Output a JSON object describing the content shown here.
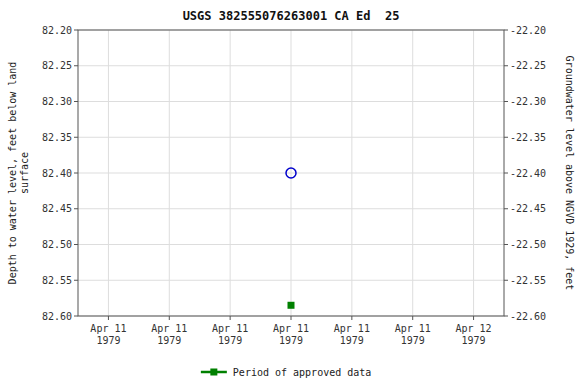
{
  "chart_data": {
    "type": "scatter",
    "title": "USGS 382555076263001 CA Ed  25",
    "y_label": "Depth to water level, feet below land\nsurface",
    "y2_label": "Groundwater level above NGVD 1929, feet",
    "categories": [
      "Apr 11\n1979",
      "Apr 11\n1979",
      "Apr 11\n1979",
      "Apr 11\n1979",
      "Apr 11\n1979",
      "Apr 11\n1979",
      "Apr 12\n1979"
    ],
    "series": [
      {
        "color": "#0000cc",
        "marker": "open-circle",
        "line_style": "none",
        "values": [
          null,
          null,
          null,
          82.4,
          null,
          null,
          null
        ]
      },
      {
        "name": "Period of approved data",
        "color": "#008000",
        "marker": "square",
        "line_style": "none",
        "values": [
          null,
          null,
          null,
          82.585,
          null,
          null,
          null
        ]
      }
    ],
    "ylim": [
      82.6,
      82.2
    ],
    "yticks": [
      {
        "value": 82.2,
        "label": "82.20"
      },
      82.25,
      {
        "value": 82.3,
        "label": "82.30"
      },
      82.35,
      {
        "value": 82.4,
        "label": "82.40"
      },
      82.45,
      {
        "value": 82.5,
        "label": "82.50"
      },
      82.55,
      {
        "value": 82.6,
        "label": "82.60"
      }
    ],
    "y2lim": [
      -22.6,
      -22.2
    ],
    "y2ticks": [
      {
        "value": -22.2,
        "label": "-22.20"
      },
      -22.25,
      {
        "value": -22.3,
        "label": "-22.30"
      },
      -22.35,
      {
        "value": -22.4,
        "label": "-22.40"
      },
      -22.45,
      {
        "value": -22.5,
        "label": "-22.50"
      },
      -22.55,
      {
        "value": -22.6,
        "label": "-22.60"
      }
    ],
    "grid": true,
    "legend": "bottom"
  }
}
